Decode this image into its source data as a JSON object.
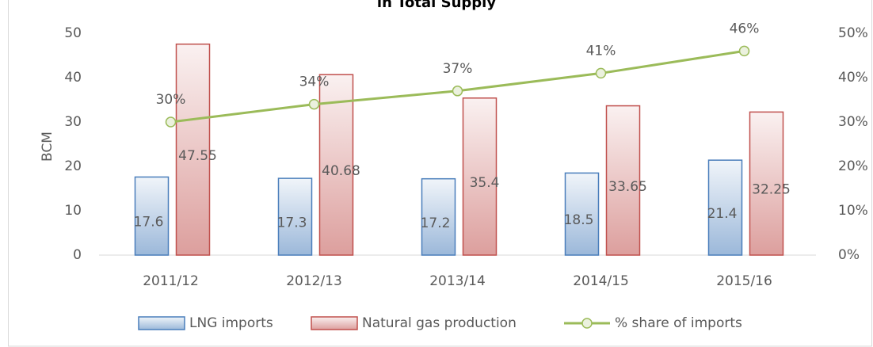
{
  "chart_data": {
    "type": "bar",
    "title": "in Total Supply",
    "categories": [
      "2011/12",
      "2012/13",
      "2013/14",
      "2014/15",
      "2015/16"
    ],
    "y_label": "BCM",
    "ylim": [
      0,
      50
    ],
    "yticks": [
      0,
      10,
      20,
      30,
      40,
      50
    ],
    "y2lim": [
      0,
      50
    ],
    "y2ticks": [
      {
        "value": 0,
        "label": "0%"
      },
      {
        "value": 10,
        "label": "10%"
      },
      {
        "value": 20,
        "label": "20%"
      },
      {
        "value": 30,
        "label": "30%"
      },
      {
        "value": 40,
        "label": "40%"
      },
      {
        "value": 50,
        "label": "50%"
      }
    ],
    "series": [
      {
        "name": "LNG imports",
        "color": "#4a7ebb",
        "values": [
          17.6,
          17.3,
          17.2,
          18.5,
          21.4
        ]
      },
      {
        "name": "Natural gas production",
        "color": "#c0504d",
        "values": [
          47.55,
          40.68,
          35.4,
          33.65,
          32.25
        ]
      },
      {
        "name": "% share of imports",
        "type": "line",
        "axis": "y2",
        "color": "#9bbb59",
        "values": [
          30,
          34,
          37,
          41,
          46
        ],
        "value_labels": [
          "30%",
          "34%",
          "37%",
          "41%",
          "46%"
        ]
      }
    ],
    "grid": false,
    "legend": "bottom"
  }
}
